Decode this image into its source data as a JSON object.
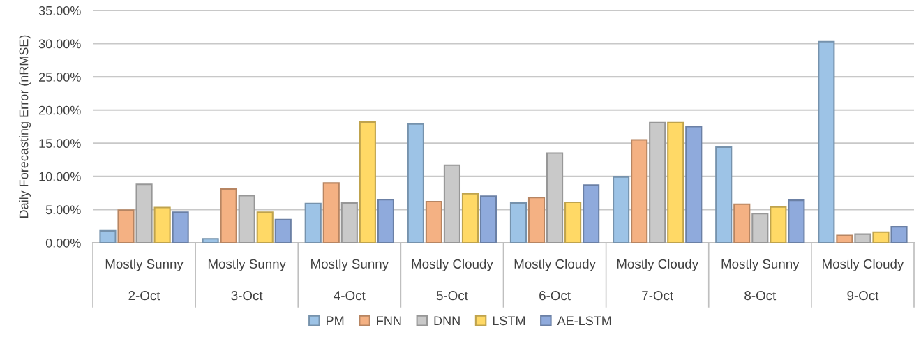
{
  "chart_data": {
    "type": "bar",
    "ylabel": "Daily Forecasting Error (nRMSE)",
    "categories": [
      "Mostly Sunny\n2-Oct",
      "Mostly Sunny\n3-Oct",
      "Mostly Sunny\n4-Oct",
      "Mostly Cloudy\n5-Oct",
      "Mostly Cloudy\n6-Oct",
      "Mostly Cloudy\n7-Oct",
      "Mostly Sunny\n8-Oct",
      "Mostly Cloudy\n9-Oct"
    ],
    "series": [
      {
        "name": "PM",
        "color": "#9dc3e6",
        "values": [
          1.8,
          0.6,
          5.9,
          17.9,
          6.0,
          9.9,
          14.4,
          30.3
        ]
      },
      {
        "name": "FNN",
        "color": "#f4b183",
        "values": [
          4.9,
          8.1,
          9.0,
          6.2,
          6.8,
          15.5,
          5.8,
          1.1
        ]
      },
      {
        "name": "DNN",
        "color": "#c9c9c9",
        "values": [
          8.8,
          7.1,
          6.0,
          11.7,
          13.5,
          18.1,
          4.4,
          1.3
        ]
      },
      {
        "name": "LSTM",
        "color": "#ffd966",
        "values": [
          5.3,
          4.6,
          18.2,
          7.4,
          6.1,
          18.1,
          5.4,
          1.6
        ]
      },
      {
        "name": "AE-LSTM",
        "color": "#8faadc",
        "values": [
          4.6,
          3.5,
          6.5,
          7.0,
          8.7,
          17.5,
          6.4,
          2.4
        ]
      }
    ],
    "ylim": [
      0,
      35
    ],
    "yticks": [
      {
        "value": 0,
        "label": "0.00%"
      },
      {
        "value": 5,
        "label": "5.00%"
      },
      {
        "value": 10,
        "label": "10.00%"
      },
      {
        "value": 15,
        "label": "15.00%"
      },
      {
        "value": 20,
        "label": "20.00%"
      },
      {
        "value": 25,
        "label": "25.00%"
      },
      {
        "value": 30,
        "label": "30.00%"
      },
      {
        "value": 35,
        "label": "35.00%"
      }
    ],
    "grid": "y",
    "legend": "bottom"
  }
}
